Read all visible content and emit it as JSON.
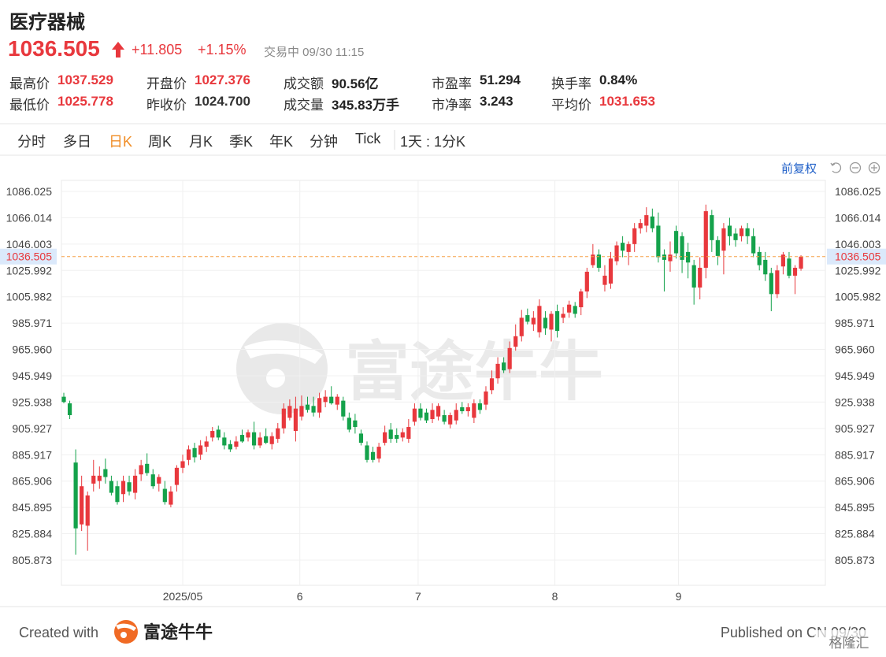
{
  "header": {
    "title": "医疗器械",
    "price": "1036.505",
    "change": "+11.805",
    "change_pct": "+1.15%",
    "status": "交易中 09/30 11:15",
    "stats": [
      {
        "label": "最高价",
        "value": "1037.529",
        "color": "#e8383d"
      },
      {
        "label": "最低价",
        "value": "1025.778",
        "color": "#e8383d"
      },
      {
        "label": "开盘价",
        "value": "1027.376",
        "color": "#e8383d"
      },
      {
        "label": "昨收价",
        "value": "1024.700",
        "color": "#333333"
      },
      {
        "label": "成交额",
        "value": "90.56亿",
        "color": "#222222"
      },
      {
        "label": "成交量",
        "value": "345.83万手",
        "color": "#222222"
      },
      {
        "label": "市盈率",
        "value": "51.294",
        "color": "#222222"
      },
      {
        "label": "市净率",
        "value": "3.243",
        "color": "#222222"
      },
      {
        "label": "换手率",
        "value": "0.84%",
        "color": "#222222"
      },
      {
        "label": "平均价",
        "value": "1031.653",
        "color": "#e8383d"
      }
    ]
  },
  "tabs": [
    "分时",
    "多日",
    "日K",
    "周K",
    "月K",
    "季K",
    "年K",
    "分钟",
    "Tick"
  ],
  "active_tab": 2,
  "interval": "1天 : 1分K",
  "adjust": "前复权",
  "watermark": "富途牛牛",
  "footer": {
    "created": "Created with",
    "brand": "富途牛牛",
    "published": "Published on CN 09/30",
    "source": "格隆汇"
  },
  "chart_data": {
    "type": "candlestick",
    "up_color": "#e8383d",
    "down_color": "#14a24b",
    "current_price": 1036.505,
    "current_color": "#f5a24a",
    "grid": true,
    "ylim": [
      786.7,
      1094.4
    ],
    "yticks": [
      1086.025,
      1066.014,
      1046.003,
      1025.992,
      1005.982,
      985.971,
      {
        "value": 965.96,
        "label": "965.960"
      },
      945.949,
      925.938,
      905.927,
      885.917,
      865.906,
      845.895,
      825.884,
      805.873
    ],
    "xlim": [
      -0.4,
      128.1
    ],
    "xticks": [
      {
        "value": 20,
        "label": "2025/05"
      },
      {
        "value": 39.7,
        "label": "6"
      },
      {
        "value": 59.6,
        "label": "7"
      },
      {
        "value": 82.6,
        "label": "8"
      },
      {
        "value": 103.4,
        "label": "9"
      }
    ],
    "open": [
      930,
      925,
      880,
      833,
      832,
      864,
      866,
      875,
      866,
      862,
      856,
      865,
      857,
      871,
      879,
      871,
      864,
      860,
      848,
      863,
      876,
      882,
      891,
      886,
      892,
      899,
      905,
      899,
      894,
      892,
      901,
      899,
      903,
      893,
      900,
      894,
      898,
      906,
      914,
      904,
      915,
      924,
      923,
      918,
      926,
      930,
      924,
      927,
      914,
      912,
      902,
      893,
      888,
      883,
      895,
      905,
      901,
      899,
      898,
      911,
      921,
      918,
      913,
      915,
      916,
      909,
      912,
      922,
      919,
      914,
      925,
      924,
      935,
      944,
      956,
      951,
      968,
      976,
      992,
      985,
      979,
      990,
      981,
      995,
      990,
      994,
      999,
      998,
      1010,
      1030,
      1038,
      1015,
      1016,
      1033,
      1047,
      1040,
      1046,
      1058,
      1060,
      1067,
      1060,
      1038,
      1033,
      1056,
      1052,
      1040,
      1030,
      1013,
      1028,
      1068,
      1049,
      1041,
      1060,
      1054,
      1052,
      1058,
      1052,
      1040,
      1034,
      1024,
      1008,
      1029,
      1035,
      1022,
      1027.376
    ],
    "high": [
      933,
      927,
      890,
      870,
      858,
      882,
      877,
      883,
      870,
      866,
      870,
      870,
      875,
      882,
      887,
      875,
      871,
      866,
      862,
      878,
      886,
      893,
      895,
      897,
      900,
      907,
      908,
      903,
      897,
      900,
      905,
      905,
      911,
      903,
      906,
      903,
      910,
      925,
      928,
      930,
      931,
      930,
      930,
      933,
      935,
      938,
      932,
      930,
      918,
      917,
      905,
      896,
      892,
      895,
      908,
      910,
      906,
      906,
      913,
      925,
      925,
      921,
      925,
      925,
      920,
      918,
      925,
      926,
      925,
      928,
      928,
      938,
      950,
      960,
      960,
      972,
      985,
      996,
      997,
      995,
      1004,
      995,
      995,
      1000,
      998,
      1003,
      1002,
      1012,
      1028,
      1046,
      1042,
      1030,
      1040,
      1048,
      1052,
      1048,
      1062,
      1065,
      1074,
      1073,
      1070,
      1042,
      1048,
      1060,
      1055,
      1047,
      1034,
      1036,
      1076,
      1072,
      1052,
      1062,
      1066,
      1058,
      1060,
      1062,
      1058,
      1044,
      1040,
      1028,
      1030,
      1040,
      1040,
      1030,
      1037.529
    ],
    "low": [
      925,
      913,
      810,
      828,
      813,
      858,
      860,
      864,
      855,
      848,
      850,
      855,
      852,
      866,
      870,
      860,
      858,
      848,
      846,
      858,
      872,
      878,
      880,
      882,
      888,
      896,
      897,
      890,
      888,
      890,
      895,
      896,
      890,
      891,
      894,
      890,
      895,
      902,
      912,
      896,
      912,
      918,
      915,
      914,
      922,
      924,
      920,
      912,
      903,
      902,
      893,
      880,
      880,
      880,
      893,
      895,
      895,
      896,
      895,
      908,
      912,
      910,
      910,
      912,
      909,
      906,
      909,
      917,
      915,
      910,
      917,
      920,
      932,
      940,
      948,
      948,
      965,
      972,
      985,
      980,
      975,
      977,
      972,
      975,
      986,
      990,
      990,
      992,
      1005,
      1028,
      1025,
      1010,
      1012,
      1030,
      1036,
      1030,
      1040,
      1054,
      1055,
      1055,
      1032,
      1010,
      1025,
      1035,
      1024,
      1020,
      1000,
      1004,
      1020,
      1040,
      1030,
      1023,
      1045,
      1044,
      1048,
      1046,
      1036,
      1026,
      1018,
      995,
      1005,
      1023,
      1020,
      1008,
      1025.778
    ],
    "close": [
      926,
      916,
      830,
      862,
      855,
      870,
      870,
      869,
      857,
      850,
      866,
      858,
      870,
      878,
      872,
      862,
      869,
      850,
      858,
      876,
      881,
      890,
      884,
      893,
      896,
      904,
      899,
      893,
      890,
      896,
      896,
      903,
      893,
      899,
      895,
      900,
      906,
      921,
      923,
      921,
      923,
      920,
      918,
      929,
      930,
      925,
      930,
      915,
      905,
      907,
      895,
      882,
      882,
      892,
      903,
      898,
      898,
      903,
      907,
      921,
      914,
      912,
      920,
      923,
      911,
      916,
      920,
      919,
      922,
      925,
      920,
      934,
      944,
      955,
      950,
      967,
      976,
      990,
      987,
      990,
      999,
      982,
      993,
      980,
      993,
      1000,
      993,
      1010,
      1025,
      1038,
      1028,
      1022,
      1035,
      1045,
      1041,
      1046,
      1058,
      1062,
      1068,
      1058,
      1036,
      1034,
      1038,
      1039,
      1034,
      1032,
      1013,
      1028,
      1071,
      1049,
      1037,
      1058,
      1052,
      1049,
      1058,
      1052,
      1039,
      1030,
      1023,
      1008,
      1026,
      1038,
      1022,
      1028,
      1036.505
    ]
  }
}
